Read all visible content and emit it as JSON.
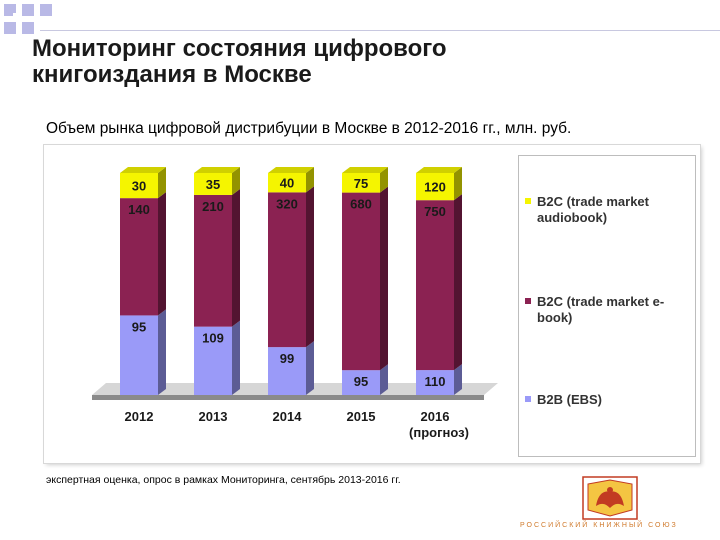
{
  "slide": {
    "title": "Мониторинг состояния цифрового\nкнигоиздания в Москве",
    "source_note": "экспертная оценка, опрос в рамках Мониторинга, сентябрь 2013-2016 гг.",
    "logo_caption": "РОССИЙСКИЙ КНИЖНЫЙ СОЮЗ"
  },
  "colors": {
    "b2b": "#9a9af8",
    "b2c_ebook": "#8b2252",
    "b2c_audiobook": "#f5f500",
    "decor_square": "#b9b9e6",
    "floor": "#8a8a8a"
  },
  "chart_data": {
    "type": "bar",
    "stacked": true,
    "title": "Объем рынка цифровой дистрибуции в Москве в 2012-2016 гг., млн. руб.",
    "categories": [
      "2012",
      "2013",
      "2014",
      "2015",
      "2016"
    ],
    "category_sublabels": [
      "",
      "",
      "",
      "",
      "(прогноз)"
    ],
    "series": [
      {
        "name": "B2B (EBS)",
        "values": [
          95,
          109,
          99,
          95,
          110
        ],
        "color": "#9a9af8"
      },
      {
        "name": "B2C (trade market e-book)",
        "values": [
          140,
          210,
          320,
          680,
          750
        ],
        "color": "#8b2252"
      },
      {
        "name": "B2C (trade market audiobook)",
        "values": [
          30,
          35,
          40,
          75,
          120
        ],
        "color": "#f5f500"
      }
    ],
    "normalized_100": true,
    "grid": false,
    "legend_position": "right",
    "legend_order": [
      "B2C (trade market audiobook)",
      "B2C (trade market e-book)",
      "B2B (EBS)"
    ]
  }
}
